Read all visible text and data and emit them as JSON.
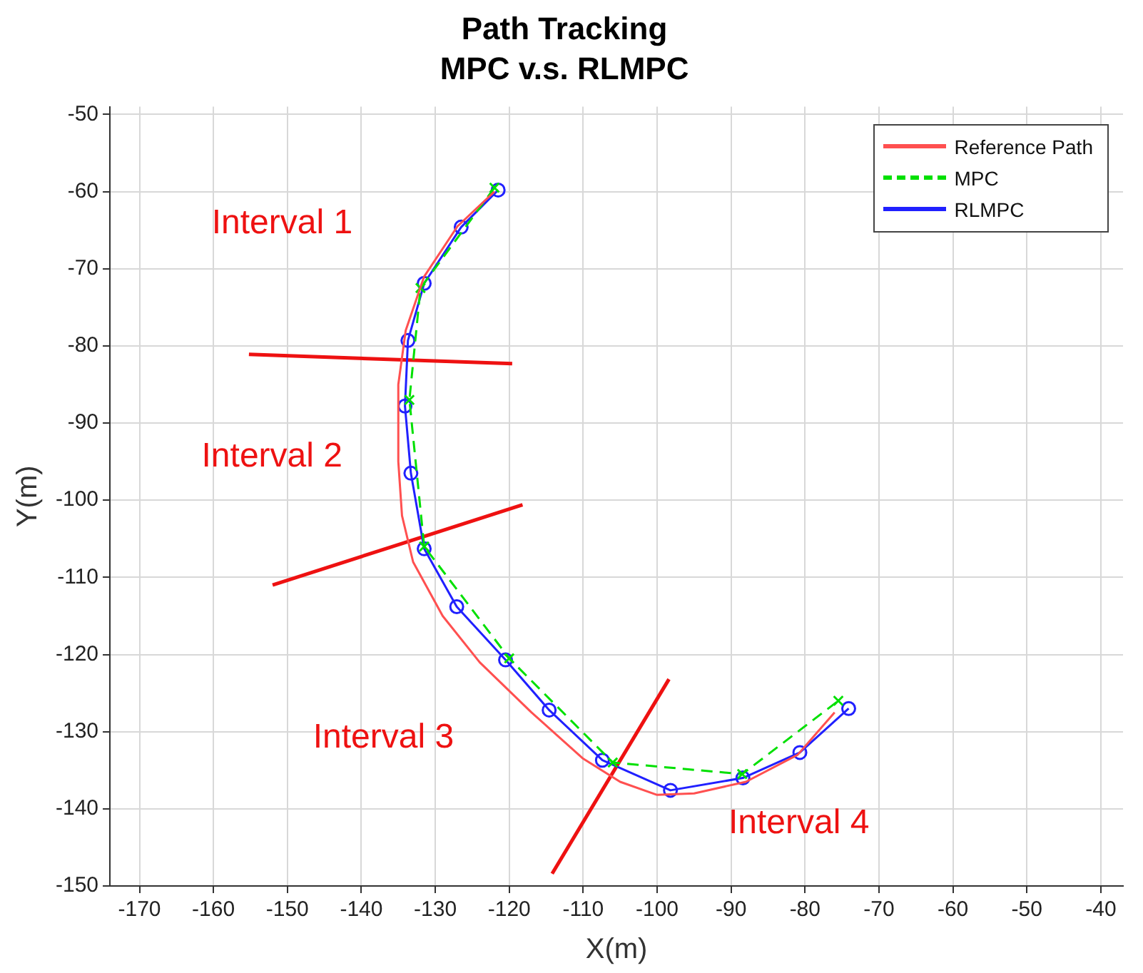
{
  "chart_data": {
    "type": "line",
    "title": "Path Tracking",
    "subtitle": "MPC v.s. RLMPC",
    "xlabel": "X(m)",
    "ylabel": "Y(m)",
    "xlim": [
      -174,
      -37
    ],
    "ylim": [
      -150,
      -49
    ],
    "xticks": [
      -170,
      -160,
      -150,
      -140,
      -130,
      -120,
      -110,
      -100,
      -90,
      -80,
      -70,
      -60,
      -50,
      -40
    ],
    "yticks": [
      -150,
      -140,
      -130,
      -120,
      -110,
      -100,
      -90,
      -80,
      -70,
      -60,
      -50
    ],
    "grid": true,
    "legend": "top right",
    "series": [
      {
        "name": "Reference Path",
        "color": "#ff5050",
        "marker": "none",
        "line_style": "solid",
        "x": [
          -122,
          -127,
          -131.5,
          -134,
          -135,
          -135,
          -134.5,
          -133,
          -129,
          -124,
          -117,
          -110,
          -105,
          -100,
          -95,
          -88,
          -81,
          -76
        ],
        "values": [
          -60,
          -64.5,
          -71,
          -78,
          -85,
          -95,
          -102,
          -108,
          -115,
          -121,
          -127.5,
          -133.5,
          -136.5,
          -138.2,
          -138,
          -136.5,
          -133,
          -127.5
        ]
      },
      {
        "name": "MPC",
        "color": "#00e000",
        "marker": "cross",
        "line_style": "dashed",
        "x": [
          -122,
          -132,
          -133.5,
          -131.5,
          -120,
          -106,
          -88.5,
          -75.5
        ],
        "values": [
          -59.5,
          -72.5,
          -87,
          -106,
          -120.5,
          -134,
          -135.5,
          -126
        ]
      },
      {
        "name": "RLMPC",
        "color": "#2020ff",
        "marker": "circle",
        "line_style": "solid",
        "x": [
          -121.5,
          -126.5,
          -131.5,
          -133.7,
          -134.1,
          -133.3,
          -131.5,
          -127.1,
          -120.5,
          -114.6,
          -107.4,
          -98.2,
          -88.4,
          -80.7,
          -74.1
        ],
        "values": [
          -59.8,
          -64.6,
          -71.9,
          -79.3,
          -87.8,
          -96.5,
          -106.3,
          -113.8,
          -120.7,
          -127.2,
          -133.7,
          -137.6,
          -136,
          -132.7,
          -127
        ]
      },
      {
        "color": "#ee1111",
        "marker": "none",
        "line_style": "solid",
        "x": [
          -155.2,
          -119.6
        ],
        "values": [
          -81.1,
          -82.3
        ]
      },
      {
        "color": "#ee1111",
        "marker": "none",
        "line_style": "solid",
        "x": [
          -152,
          -118.2
        ],
        "values": [
          -111,
          -100.6
        ]
      },
      {
        "color": "#ee1111",
        "marker": "none",
        "line_style": "solid",
        "x": [
          -114.2,
          -98.4
        ],
        "values": [
          -148.4,
          -123.2
        ]
      }
    ],
    "annotations": [
      "Interval 1",
      "Interval 2",
      "Interval 3",
      "Interval 4"
    ]
  }
}
